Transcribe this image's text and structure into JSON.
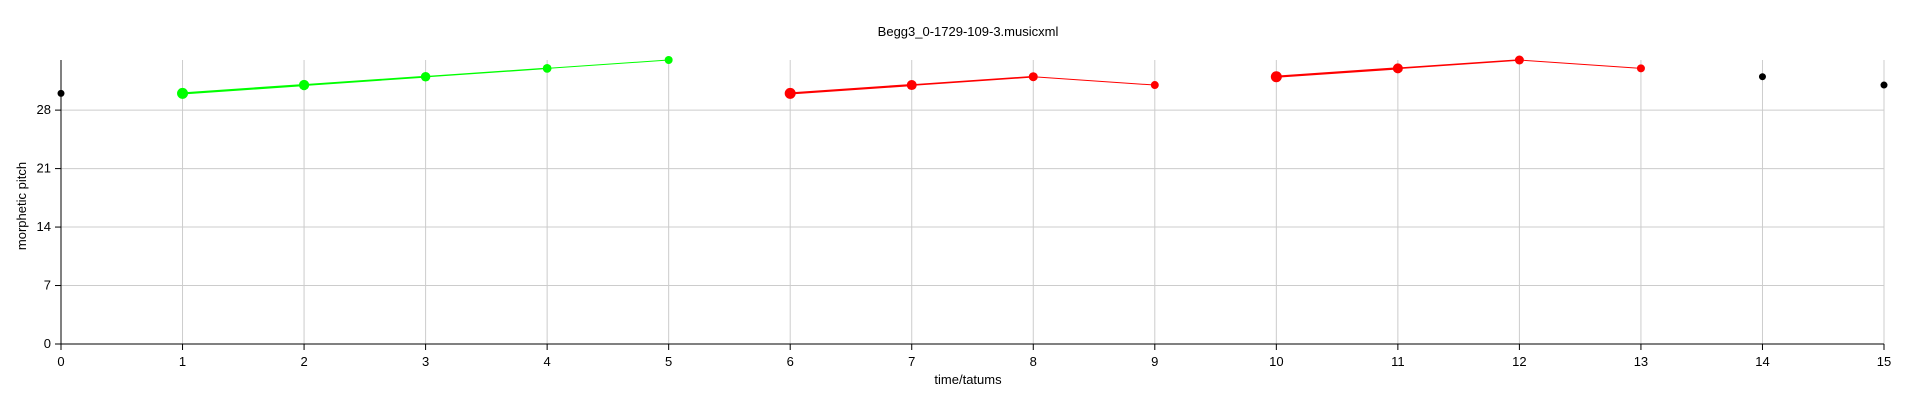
{
  "chart_data": {
    "type": "scatter",
    "title": "Begg3_0-1729-109-3.musicxml",
    "xlabel": "time/tatums",
    "ylabel": "morphetic pitch",
    "xlim": [
      0,
      15
    ],
    "ylim": [
      0,
      34
    ],
    "x_ticks": [
      0,
      1,
      2,
      3,
      4,
      5,
      6,
      7,
      8,
      9,
      10,
      11,
      12,
      13,
      14,
      15
    ],
    "y_ticks": [
      0,
      7,
      14,
      21,
      28
    ],
    "grid": true,
    "series": [
      {
        "color": "#000000",
        "points": [
          [
            0,
            30
          ],
          [
            14,
            32
          ],
          [
            15,
            31
          ]
        ]
      },
      {
        "color": "#00ff00",
        "points": [
          [
            1,
            30
          ],
          [
            2,
            31
          ],
          [
            3,
            32
          ],
          [
            4,
            33
          ],
          [
            5,
            34
          ]
        ]
      },
      {
        "color": "#ff0000",
        "points": [
          [
            6,
            30
          ],
          [
            7,
            31
          ],
          [
            8,
            32
          ],
          [
            9,
            31
          ]
        ]
      },
      {
        "color": "#ff0000",
        "points": [
          [
            10,
            32
          ],
          [
            11,
            33
          ],
          [
            12,
            34
          ],
          [
            13,
            33
          ]
        ]
      }
    ]
  }
}
